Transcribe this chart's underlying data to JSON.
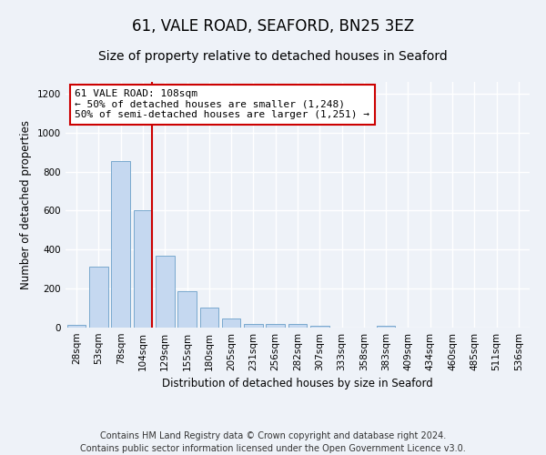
{
  "title": "61, VALE ROAD, SEAFORD, BN25 3EZ",
  "subtitle": "Size of property relative to detached houses in Seaford",
  "xlabel": "Distribution of detached houses by size in Seaford",
  "ylabel": "Number of detached properties",
  "categories": [
    "28sqm",
    "53sqm",
    "78sqm",
    "104sqm",
    "129sqm",
    "155sqm",
    "180sqm",
    "205sqm",
    "231sqm",
    "256sqm",
    "282sqm",
    "307sqm",
    "333sqm",
    "358sqm",
    "383sqm",
    "409sqm",
    "434sqm",
    "460sqm",
    "485sqm",
    "511sqm",
    "536sqm"
  ],
  "values": [
    15,
    315,
    855,
    600,
    370,
    185,
    105,
    45,
    20,
    18,
    18,
    10,
    0,
    0,
    10,
    0,
    0,
    0,
    0,
    0,
    0
  ],
  "bar_color": "#c5d8f0",
  "bar_edge_color": "#6a9fc8",
  "red_line_index": 3,
  "annotation_text": "61 VALE ROAD: 108sqm\n← 50% of detached houses are smaller (1,248)\n50% of semi-detached houses are larger (1,251) →",
  "annotation_box_color": "#ffffff",
  "annotation_box_edge_color": "#cc0000",
  "red_line_color": "#cc0000",
  "ylim": [
    0,
    1260
  ],
  "yticks": [
    0,
    200,
    400,
    600,
    800,
    1000,
    1200
  ],
  "footer_line1": "Contains HM Land Registry data © Crown copyright and database right 2024.",
  "footer_line2": "Contains public sector information licensed under the Open Government Licence v3.0.",
  "background_color": "#eef2f8",
  "grid_color": "#ffffff",
  "title_fontsize": 12,
  "subtitle_fontsize": 10,
  "axis_label_fontsize": 8.5,
  "tick_fontsize": 7.5,
  "annotation_fontsize": 8,
  "footer_fontsize": 7
}
